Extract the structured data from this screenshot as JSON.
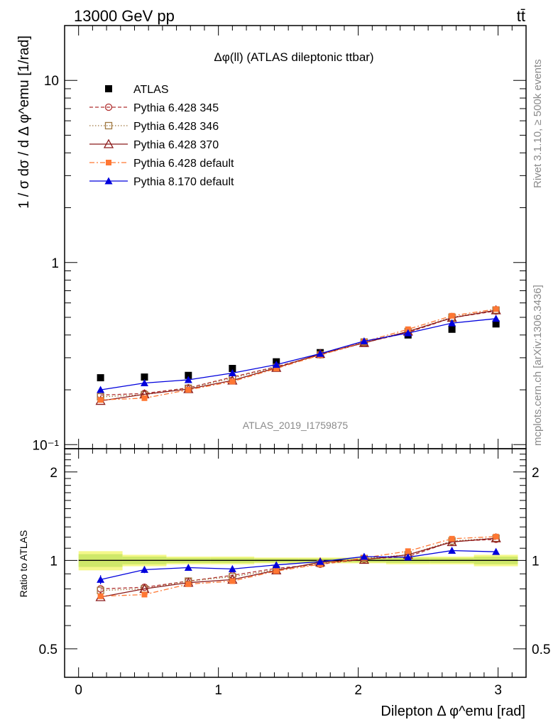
{
  "header": {
    "energy_label": "13000 GeV pp",
    "process_label": "tt̄"
  },
  "side": {
    "rivet_label": "Rivet 3.1.10, ≥ 500k events",
    "mcplots_label": "mcplots.cern.ch [arXiv:1306.3436]"
  },
  "chart_data": [
    {
      "type": "line",
      "panel": "main",
      "title": "Δφ(ll) (ATLAS dileptonic ttbar)",
      "watermark": "ATLAS_2019_I1759875",
      "xlabel": "Dilepton Δ φ^emu [rad]",
      "ylabel": "1 / σ  dσ / d Δ φ^emu [1/rad]",
      "yscale": "log",
      "xlim": [
        -0.1,
        3.2
      ],
      "ylim": [
        0.095,
        20
      ],
      "y_tick_labels": [
        "10⁻¹",
        "1",
        "10"
      ],
      "legend_position": "top-left",
      "x": [
        0.157,
        0.471,
        0.785,
        1.1,
        1.414,
        1.728,
        2.042,
        2.356,
        2.67,
        2.985
      ],
      "series": [
        {
          "name": "ATLAS",
          "color": "#000000",
          "marker": "square-filled",
          "line": "none",
          "values": [
            0.233,
            0.235,
            0.24,
            0.262,
            0.285,
            0.32,
            0.36,
            0.4,
            0.43,
            0.46
          ]
        },
        {
          "name": "Pythia 6.428 345",
          "color": "#b03030",
          "marker": "circle-open",
          "line": "dashed",
          "values": [
            0.187,
            0.191,
            0.205,
            0.235,
            0.268,
            0.311,
            0.363,
            0.413,
            0.497,
            0.542
          ]
        },
        {
          "name": "Pythia 6.428 346",
          "color": "#a07840",
          "marker": "square-open",
          "line": "dotted",
          "values": [
            0.183,
            0.188,
            0.204,
            0.232,
            0.266,
            0.312,
            0.366,
            0.418,
            0.501,
            0.548
          ]
        },
        {
          "name": "Pythia 6.428 370",
          "color": "#8b1a1a",
          "marker": "triangle-open",
          "line": "solid",
          "values": [
            0.174,
            0.189,
            0.202,
            0.225,
            0.264,
            0.315,
            0.362,
            0.418,
            0.497,
            0.547
          ]
        },
        {
          "name": "Pythia 6.428 default",
          "color": "#ff7733",
          "marker": "square-filled-small",
          "line": "dashdot",
          "values": [
            0.176,
            0.18,
            0.2,
            0.222,
            0.262,
            0.31,
            0.367,
            0.43,
            0.51,
            0.555
          ]
        },
        {
          "name": "Pythia 8.170 default",
          "color": "#0000dd",
          "marker": "triangle-filled",
          "line": "solid",
          "values": [
            0.2,
            0.218,
            0.227,
            0.247,
            0.275,
            0.316,
            0.37,
            0.41,
            0.465,
            0.492
          ],
          "errors": [
            0.007,
            0.005,
            0.005,
            0.006,
            0.005,
            0.005,
            0.006,
            0.007,
            0.008,
            0.009
          ]
        }
      ]
    },
    {
      "type": "line",
      "panel": "ratio",
      "ylabel": "Ratio to ATLAS",
      "xlabel": "Dilepton Δ φ^emu [rad]",
      "xlim": [
        -0.1,
        3.2
      ],
      "ylim": [
        0.4,
        2.4
      ],
      "y_ticks": [
        0.5,
        1,
        2
      ],
      "x_ticks": [
        0,
        1,
        2,
        3
      ],
      "band_color_inner": "#cfe86a",
      "band_color_outer": "#f4f88a",
      "band": [
        0.05,
        0.03,
        0.02,
        0.02,
        0.015,
        0.015,
        0.015,
        0.02,
        0.02,
        0.03
      ],
      "x": [
        0.157,
        0.471,
        0.785,
        1.1,
        1.414,
        1.728,
        2.042,
        2.356,
        2.67,
        2.985
      ],
      "series": [
        {
          "name": "Pythia 6.428 345",
          "values": [
            0.8,
            0.81,
            0.85,
            0.89,
            0.94,
            0.97,
            1.01,
            1.03,
            1.16,
            1.18
          ]
        },
        {
          "name": "Pythia 6.428 346",
          "values": [
            0.79,
            0.8,
            0.85,
            0.88,
            0.93,
            0.975,
            1.015,
            1.045,
            1.165,
            1.19
          ]
        },
        {
          "name": "Pythia 6.428 370",
          "values": [
            0.75,
            0.8,
            0.84,
            0.86,
            0.925,
            0.985,
            1.005,
            1.045,
            1.155,
            1.19
          ]
        },
        {
          "name": "Pythia 6.428 default",
          "values": [
            0.755,
            0.765,
            0.83,
            0.85,
            0.92,
            0.97,
            1.02,
            1.075,
            1.185,
            1.205
          ]
        },
        {
          "name": "Pythia 8.170 default",
          "values": [
            0.86,
            0.93,
            0.945,
            0.935,
            0.965,
            0.99,
            1.03,
            1.025,
            1.08,
            1.07
          ],
          "errors": [
            0.03,
            0.025,
            0.02,
            0.025,
            0.02,
            0.015,
            0.02,
            0.02,
            0.02,
            0.02
          ]
        }
      ]
    }
  ]
}
